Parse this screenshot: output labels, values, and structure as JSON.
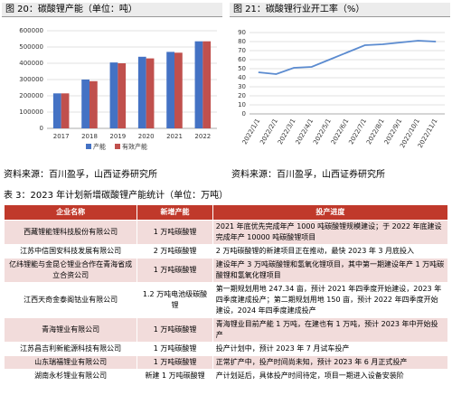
{
  "chart_data": [
    {
      "type": "bar",
      "title": "图 20：碳酸锂产能（单位：吨）",
      "categories": [
        "2017",
        "2018",
        "2019",
        "2020",
        "2021",
        "2022"
      ],
      "series": [
        {
          "name": "产能",
          "color": "#4472c4",
          "values": [
            215000,
            300000,
            405000,
            440000,
            470000,
            535000
          ]
        },
        {
          "name": "有效产能",
          "color": "#c0504d",
          "values": [
            215000,
            290000,
            400000,
            430000,
            465000,
            535000
          ]
        }
      ],
      "ylim": [
        0,
        600000
      ],
      "yticks": [
        0,
        100000,
        200000,
        300000,
        400000,
        500000,
        600000
      ],
      "grid": true,
      "legend": "bottom"
    },
    {
      "type": "line",
      "title": "图 21：碳酸锂行业开工率（%）",
      "categories": [
        "2022/1/1",
        "2022/2/1",
        "2022/3/1",
        "2022/4/1",
        "2022/5/1",
        "2022/6/1",
        "2022/7/1",
        "2022/8/1",
        "2022/9/1",
        "2022/10/1",
        "2022/11/1"
      ],
      "series": [
        {
          "color": "#5b8bd0",
          "values": [
            46,
            44,
            51,
            52,
            60,
            68,
            76,
            77,
            79,
            81,
            80
          ]
        }
      ],
      "ylim": [
        0,
        90
      ],
      "yticks": [
        0,
        10,
        20,
        30,
        40,
        50,
        60,
        70,
        80,
        90
      ],
      "grid": true
    }
  ],
  "sources": [
    "资料来源：百川盈孚，山西证券研究所",
    "资料来源：百川盈孚，山西证券研究所"
  ],
  "table": {
    "title": "表 3：2023 年计划新增碳酸锂产能统计（单位：万吨）",
    "header": [
      "企业名称",
      "新增产能",
      "投产进度"
    ],
    "rows": [
      [
        "西藏锂能锂科技股份有限公司",
        "1 万吨碳酸锂",
        "2021 年底优先完成年产 1000 吨碳酸锂规模建设；于 2022 年底建设完成年产 10000 吨碳酸锂项目"
      ],
      [
        "江苏中信国安科技发展有限公司",
        "2 万吨碳酸锂",
        "2 万吨碳酸锂的新建项目正在推动，最快 2023 年 3 月底投入"
      ],
      [
        "亿纬锂能与金昆仑锂业合作在青海省成立合资公司",
        "1 万吨碳酸锂",
        "建设年产 3 万吨碳酸锂和氢氧化锂项目，其中第一期建设年产 1 万吨碳酸锂和氢氧化锂项目"
      ],
      [
        "江西天奇金泰阁钴业有限公司",
        "1.2 万吨电池级碳酸锂",
        "第一期规划用地 247.34 亩，预计 2021 年四季度开始建设，2023 年四季度建成投产；第二期规划用地 150 亩，预计 2022 年四季度开始建设，2024 年四季度建成投产"
      ],
      [
        "青海锂业有限公司",
        "1 万吨碳酸锂",
        "青海锂业目前产能 1 万吨，在建也有 1 万吨，预计 2023 年中开始投产"
      ],
      [
        "江苏昌吉利新能源科技有限公司",
        "1 万吨碳酸锂",
        "投产计划中，预计 2023 年 7 月试车投产"
      ],
      [
        "山东瑞福锂业有限公司",
        "1 万吨碳酸锂",
        "正常扩产中，投产时间尚未知，预计 2023 年 6 月正式投产"
      ],
      [
        "湖南永杉锂业有限公司",
        "新建 1 万吨碳酸锂",
        "产计划延后，具体投产时间待定，项目一期进入设备安装阶"
      ]
    ]
  }
}
